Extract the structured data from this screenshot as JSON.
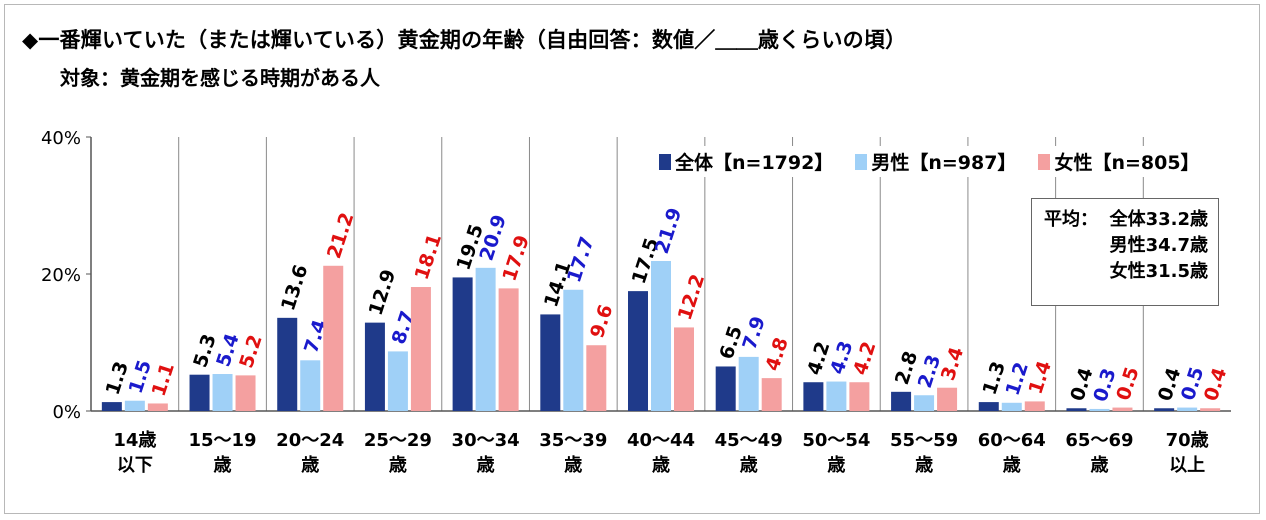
{
  "header": {
    "title": "◆一番輝いていた（または輝いている）黄金期の年齢（自由回答：数値／＿＿歳くらいの頃）",
    "subtitle": "対象：黄金期を感じる時期がある人"
  },
  "legend": {
    "items": [
      {
        "label": "全体【n=1792】",
        "color": "#1f3a8a"
      },
      {
        "label": "男性【n=987】",
        "color": "#9fd0f7"
      },
      {
        "label": "女性【n=805】",
        "color": "#f4a0a0"
      }
    ]
  },
  "average_box": {
    "title": "平均：",
    "lines": [
      "全体33.2歳",
      "男性34.7歳",
      "女性31.5歳"
    ]
  },
  "chart_data": {
    "type": "bar",
    "ylim": [
      0,
      40
    ],
    "yticks": [
      "0%",
      "20%",
      "40%"
    ],
    "categories": [
      [
        "14歳",
        "以下"
      ],
      [
        "15～19",
        "歳"
      ],
      [
        "20～24",
        "歳"
      ],
      [
        "25～29",
        "歳"
      ],
      [
        "30～34",
        "歳"
      ],
      [
        "35～39",
        "歳"
      ],
      [
        "40～44",
        "歳"
      ],
      [
        "45～49",
        "歳"
      ],
      [
        "50～54",
        "歳"
      ],
      [
        "55～59",
        "歳"
      ],
      [
        "60～64",
        "歳"
      ],
      [
        "65～69",
        "歳"
      ],
      [
        "70歳",
        "以上"
      ]
    ],
    "series": [
      {
        "name": "全体【n=1792】",
        "color": "#1f3a8a",
        "label_color": "#000000",
        "values": [
          1.3,
          5.3,
          13.6,
          12.9,
          19.5,
          14.1,
          17.5,
          6.5,
          4.2,
          2.8,
          1.3,
          0.4,
          0.4
        ]
      },
      {
        "name": "男性【n=987】",
        "color": "#9fd0f7",
        "label_color": "#1a1acc",
        "values": [
          1.5,
          5.4,
          7.4,
          8.7,
          20.9,
          17.7,
          21.9,
          7.9,
          4.3,
          2.3,
          1.2,
          0.3,
          0.5
        ]
      },
      {
        "name": "女性【n=805】",
        "color": "#f4a0a0",
        "label_color": "#e01010",
        "values": [
          1.1,
          5.2,
          21.2,
          18.1,
          17.9,
          9.6,
          12.2,
          4.8,
          4.2,
          3.4,
          1.4,
          0.5,
          0.4
        ]
      }
    ],
    "grid": false,
    "legend_position": "top-right"
  }
}
